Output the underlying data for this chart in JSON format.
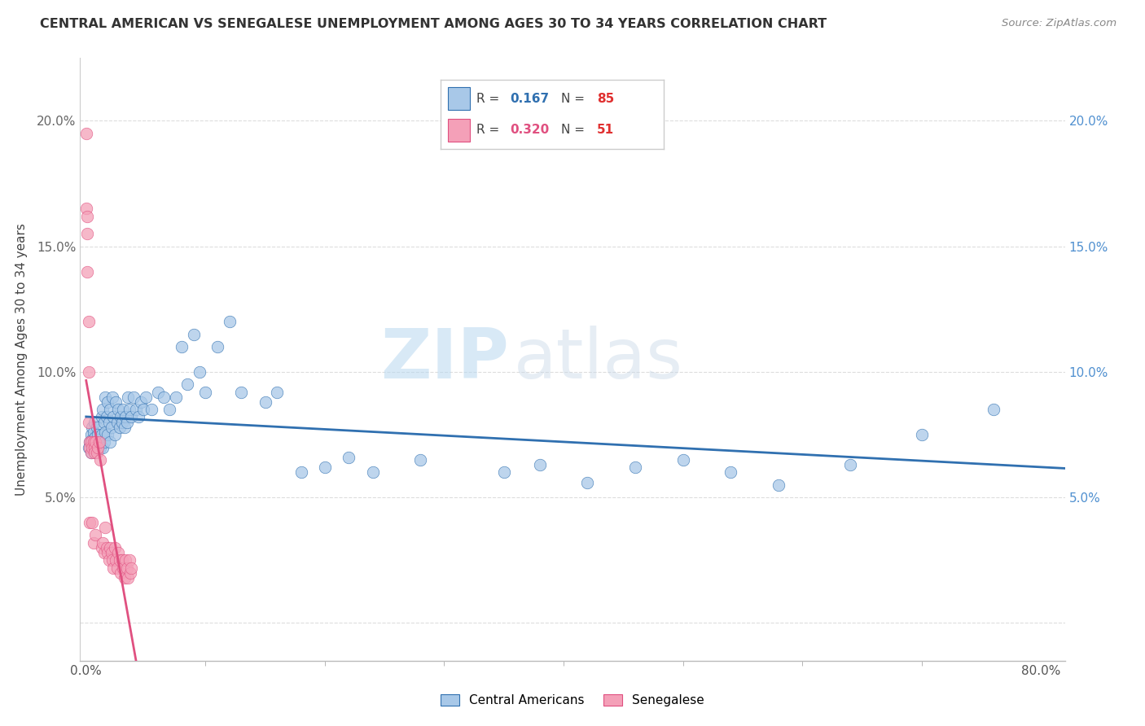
{
  "title": "CENTRAL AMERICAN VS SENEGALESE UNEMPLOYMENT AMONG AGES 30 TO 34 YEARS CORRELATION CHART",
  "source": "Source: ZipAtlas.com",
  "ylabel": "Unemployment Among Ages 30 to 34 years",
  "xlim": [
    -0.005,
    0.82
  ],
  "ylim": [
    -0.015,
    0.225
  ],
  "xticks": [
    0.0,
    0.8
  ],
  "xticklabels": [
    "0.0%",
    "80.0%"
  ],
  "yticks": [
    0.0,
    0.05,
    0.1,
    0.15,
    0.2
  ],
  "yticklabels_left": [
    "",
    "5.0%",
    "10.0%",
    "15.0%",
    "20.0%"
  ],
  "yticklabels_right": [
    "",
    "5.0%",
    "10.0%",
    "15.0%",
    "20.0%"
  ],
  "blue_R": "0.167",
  "blue_N": "85",
  "pink_R": "0.320",
  "pink_N": "51",
  "blue_color": "#a8c8e8",
  "pink_color": "#f4a0b8",
  "blue_line_color": "#3070b0",
  "pink_line_color": "#e05080",
  "watermark_zip": "ZIP",
  "watermark_atlas": "atlas",
  "legend_label_blue": "Central Americans",
  "legend_label_pink": "Senegalese",
  "blue_x": [
    0.002,
    0.003,
    0.004,
    0.004,
    0.005,
    0.005,
    0.006,
    0.006,
    0.007,
    0.007,
    0.008,
    0.008,
    0.009,
    0.009,
    0.01,
    0.01,
    0.011,
    0.012,
    0.013,
    0.013,
    0.014,
    0.014,
    0.015,
    0.015,
    0.016,
    0.016,
    0.017,
    0.018,
    0.018,
    0.019,
    0.02,
    0.02,
    0.021,
    0.022,
    0.023,
    0.024,
    0.025,
    0.026,
    0.027,
    0.028,
    0.029,
    0.03,
    0.031,
    0.032,
    0.033,
    0.034,
    0.035,
    0.036,
    0.038,
    0.04,
    0.042,
    0.044,
    0.046,
    0.048,
    0.05,
    0.055,
    0.06,
    0.065,
    0.07,
    0.075,
    0.08,
    0.085,
    0.09,
    0.095,
    0.1,
    0.11,
    0.12,
    0.13,
    0.15,
    0.16,
    0.18,
    0.2,
    0.22,
    0.24,
    0.28,
    0.35,
    0.38,
    0.42,
    0.46,
    0.5,
    0.54,
    0.58,
    0.64,
    0.7,
    0.76
  ],
  "blue_y": [
    0.07,
    0.072,
    0.068,
    0.075,
    0.073,
    0.078,
    0.07,
    0.076,
    0.072,
    0.08,
    0.068,
    0.074,
    0.072,
    0.078,
    0.07,
    0.075,
    0.073,
    0.07,
    0.075,
    0.082,
    0.07,
    0.085,
    0.072,
    0.08,
    0.076,
    0.09,
    0.082,
    0.075,
    0.088,
    0.08,
    0.072,
    0.085,
    0.078,
    0.09,
    0.082,
    0.075,
    0.088,
    0.08,
    0.085,
    0.078,
    0.082,
    0.08,
    0.085,
    0.078,
    0.082,
    0.08,
    0.09,
    0.085,
    0.082,
    0.09,
    0.085,
    0.082,
    0.088,
    0.085,
    0.09,
    0.085,
    0.092,
    0.09,
    0.085,
    0.09,
    0.11,
    0.095,
    0.115,
    0.1,
    0.092,
    0.11,
    0.12,
    0.092,
    0.088,
    0.092,
    0.06,
    0.062,
    0.066,
    0.06,
    0.065,
    0.06,
    0.063,
    0.056,
    0.062,
    0.065,
    0.06,
    0.055,
    0.063,
    0.075,
    0.085
  ],
  "pink_x": [
    0.0,
    0.0,
    0.001,
    0.001,
    0.001,
    0.002,
    0.002,
    0.002,
    0.003,
    0.003,
    0.003,
    0.004,
    0.004,
    0.005,
    0.005,
    0.006,
    0.006,
    0.007,
    0.007,
    0.008,
    0.008,
    0.009,
    0.01,
    0.011,
    0.012,
    0.013,
    0.014,
    0.015,
    0.016,
    0.017,
    0.018,
    0.019,
    0.02,
    0.021,
    0.022,
    0.023,
    0.024,
    0.025,
    0.026,
    0.027,
    0.028,
    0.029,
    0.03,
    0.031,
    0.032,
    0.033,
    0.034,
    0.035,
    0.036,
    0.037,
    0.038
  ],
  "pink_y": [
    0.195,
    0.165,
    0.162,
    0.155,
    0.14,
    0.12,
    0.1,
    0.08,
    0.072,
    0.07,
    0.04,
    0.072,
    0.068,
    0.07,
    0.04,
    0.072,
    0.032,
    0.07,
    0.068,
    0.035,
    0.072,
    0.068,
    0.07,
    0.072,
    0.065,
    0.03,
    0.032,
    0.028,
    0.038,
    0.03,
    0.028,
    0.025,
    0.03,
    0.028,
    0.025,
    0.022,
    0.03,
    0.025,
    0.022,
    0.028,
    0.025,
    0.02,
    0.025,
    0.022,
    0.018,
    0.025,
    0.022,
    0.018,
    0.025,
    0.02,
    0.022
  ],
  "pink_line_start_x": 0.0,
  "pink_line_end_x": 0.05,
  "pink_line_ext_end_x": 0.16,
  "blue_line_start_x": 0.0,
  "blue_line_end_x": 0.82
}
